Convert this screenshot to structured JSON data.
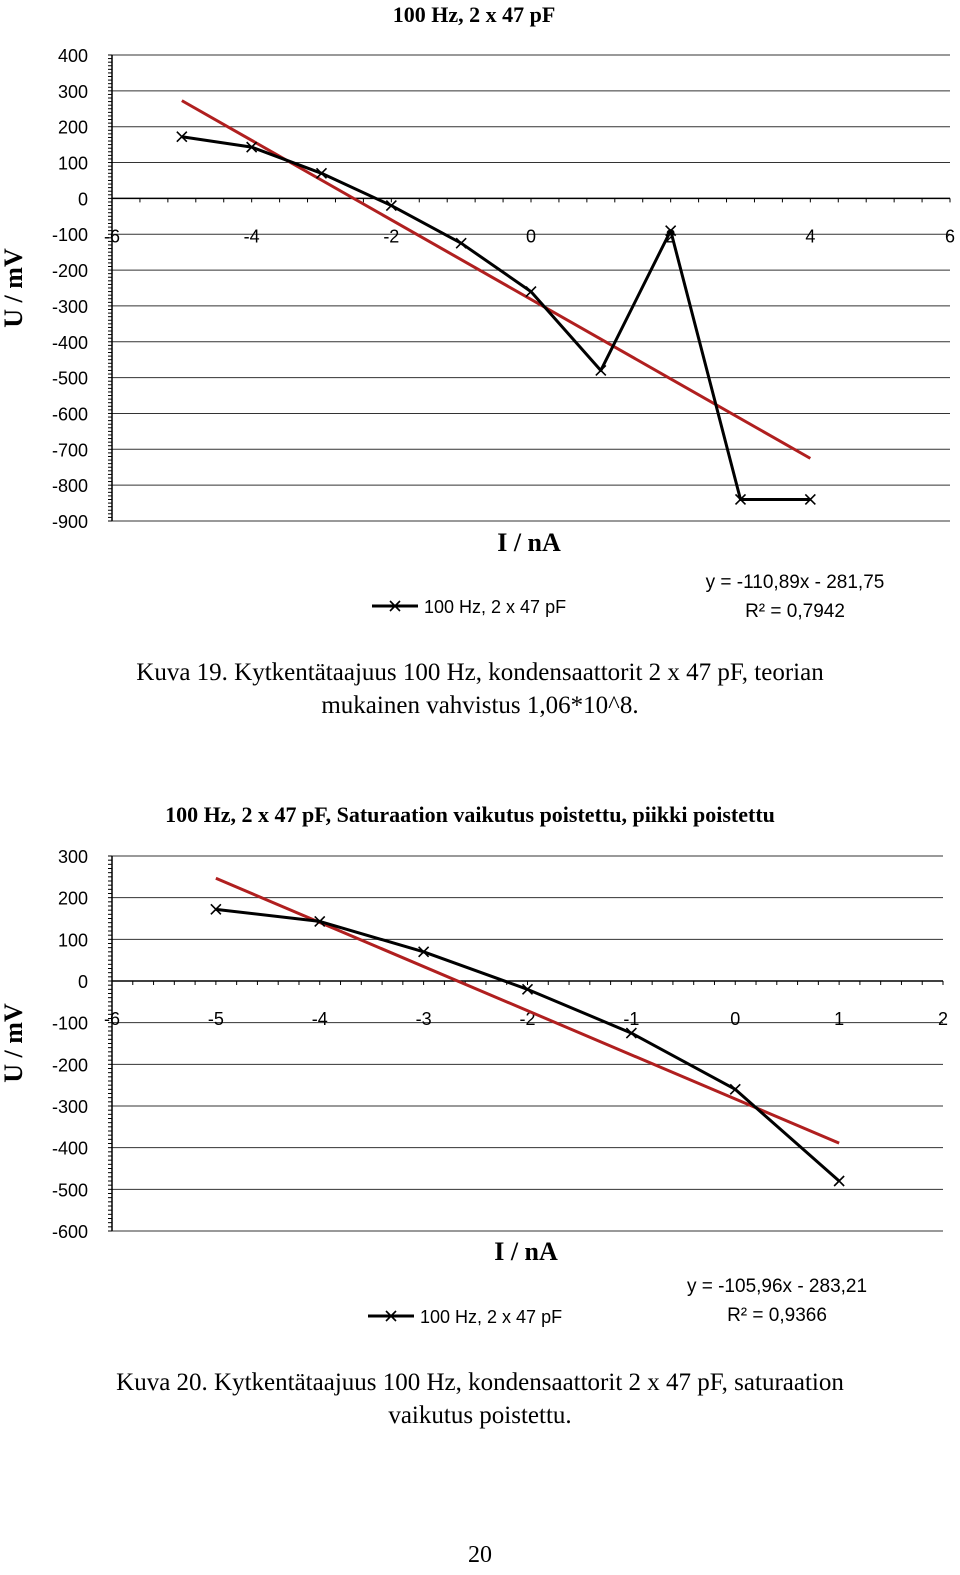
{
  "chart_data": [
    {
      "type": "line",
      "title": "100 Hz, 2 x 47 pF",
      "xlabel": "I / nA",
      "ylabel": "U / mV",
      "xlim": [
        -6,
        6
      ],
      "ylim": [
        -900,
        400
      ],
      "xticks": [
        -6,
        -4,
        -2,
        0,
        2,
        4,
        6
      ],
      "yticks": [
        400,
        300,
        200,
        100,
        0,
        -100,
        -200,
        -300,
        -400,
        -500,
        -600,
        -700,
        -800,
        -900
      ],
      "series": [
        {
          "name": "100 Hz, 2 x 47 pF",
          "color": "#000000",
          "marker": "x",
          "x": [
            -5,
            -4,
            -3,
            -2,
            -1,
            0,
            1,
            2,
            3,
            4
          ],
          "y": [
            172,
            143,
            70,
            -20,
            -125,
            -260,
            -480,
            -90,
            -840,
            -840
          ]
        }
      ],
      "trendline": {
        "slope": -110.89,
        "intercept": -281.75,
        "x": [
          -5,
          4
        ],
        "color": "#b01f1f"
      },
      "equation": "y = -110,89x - 281,75",
      "r_squared": "R² = 0,7942",
      "legend": "bottom"
    },
    {
      "type": "line",
      "title": "100 Hz, 2 x 47 pF, Saturaation vaikutus poistettu, piikki poistettu",
      "xlabel": "I / nA",
      "ylabel": "U / mV",
      "xlim": [
        -6,
        2
      ],
      "ylim": [
        -600,
        300
      ],
      "xticks": [
        -6,
        -5,
        -4,
        -3,
        -2,
        -1,
        0,
        1,
        2
      ],
      "yticks": [
        300,
        200,
        100,
        0,
        -100,
        -200,
        -300,
        -400,
        -500,
        -600
      ],
      "series": [
        {
          "name": "100 Hz, 2 x 47 pF",
          "color": "#000000",
          "marker": "x",
          "x": [
            -5,
            -4,
            -3,
            -2,
            -1,
            0,
            1
          ],
          "y": [
            172,
            143,
            70,
            -20,
            -125,
            -260,
            -480
          ]
        }
      ],
      "trendline": {
        "slope": -105.96,
        "intercept": -283.21,
        "x": [
          -5,
          1
        ],
        "color": "#b01f1f"
      },
      "equation": "y = -105,96x - 283,21",
      "r_squared": "R² = 0,9366",
      "legend": "bottom"
    }
  ],
  "captions": [
    {
      "line1": "Kuva 19. Kytkentätaajuus 100 Hz, kondensaattorit 2 x 47 pF, teorian",
      "line2": "mukainen vahvistus 1,06*10^8."
    },
    {
      "line1": "Kuva 20. Kytkentätaajuus 100 Hz, kondensaattorit 2 x 47 pF, saturaation",
      "line2": "vaikutus poistettu."
    }
  ],
  "page_number": "20"
}
